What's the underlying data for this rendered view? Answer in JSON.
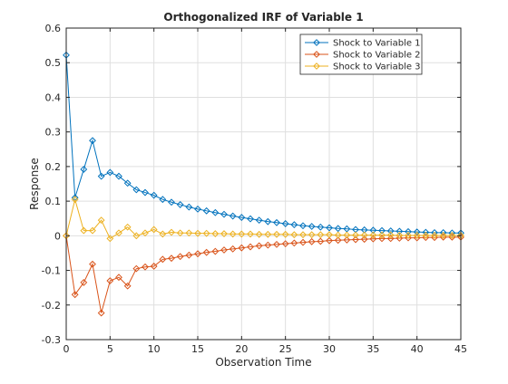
{
  "chart_data": {
    "type": "line",
    "title": "Orthogonalized IRF of Variable 1",
    "xlabel": "Observation Time",
    "ylabel": "Response",
    "xlim": [
      0,
      45
    ],
    "ylim": [
      -0.3,
      0.6
    ],
    "xticks": [
      0,
      5,
      10,
      15,
      20,
      25,
      30,
      35,
      40,
      45
    ],
    "yticks": [
      -0.3,
      -0.2,
      -0.1,
      0,
      0.1,
      0.2,
      0.3,
      0.4,
      0.5,
      0.6
    ],
    "xtick_labels": [
      "0",
      "5",
      "10",
      "15",
      "20",
      "25",
      "30",
      "35",
      "40",
      "45"
    ],
    "ytick_labels": [
      "-0.3",
      "-0.2",
      "-0.1",
      "0",
      "0.1",
      "0.2",
      "0.3",
      "0.4",
      "0.5",
      "0.6"
    ],
    "grid": true,
    "legend_position": "top-right",
    "marker": "diamond",
    "x": [
      0,
      1,
      2,
      3,
      4,
      5,
      6,
      7,
      8,
      9,
      10,
      11,
      12,
      13,
      14,
      15,
      16,
      17,
      18,
      19,
      20,
      21,
      22,
      23,
      24,
      25,
      26,
      27,
      28,
      29,
      30,
      31,
      32,
      33,
      34,
      35,
      36,
      37,
      38,
      39,
      40,
      41,
      42,
      43,
      44,
      45
    ],
    "series": [
      {
        "name": "Shock to Variable 1",
        "color": "#0072BD",
        "values": [
          0.522,
          0.11,
          0.192,
          0.275,
          0.172,
          0.183,
          0.172,
          0.152,
          0.133,
          0.125,
          0.117,
          0.105,
          0.097,
          0.09,
          0.083,
          0.077,
          0.072,
          0.067,
          0.062,
          0.057,
          0.053,
          0.049,
          0.045,
          0.041,
          0.038,
          0.035,
          0.032,
          0.029,
          0.027,
          0.025,
          0.023,
          0.021,
          0.02,
          0.018,
          0.017,
          0.016,
          0.015,
          0.014,
          0.013,
          0.012,
          0.011,
          0.01,
          0.009,
          0.009,
          0.008,
          0.008
        ]
      },
      {
        "name": "Shock to Variable 2",
        "color": "#D95319",
        "values": [
          0.0,
          -0.17,
          -0.135,
          -0.082,
          -0.223,
          -0.13,
          -0.12,
          -0.145,
          -0.095,
          -0.09,
          -0.088,
          -0.068,
          -0.065,
          -0.06,
          -0.056,
          -0.052,
          -0.048,
          -0.045,
          -0.041,
          -0.038,
          -0.035,
          -0.032,
          -0.029,
          -0.027,
          -0.025,
          -0.023,
          -0.021,
          -0.019,
          -0.017,
          -0.016,
          -0.014,
          -0.013,
          -0.012,
          -0.011,
          -0.01,
          -0.009,
          -0.008,
          -0.008,
          -0.007,
          -0.006,
          -0.006,
          -0.005,
          -0.005,
          -0.004,
          -0.004,
          -0.004
        ]
      },
      {
        "name": "Shock to Variable 3",
        "color": "#EDB120",
        "values": [
          0.0,
          0.105,
          0.015,
          0.015,
          0.045,
          -0.008,
          0.008,
          0.025,
          0.0,
          0.008,
          0.018,
          0.005,
          0.01,
          0.008,
          0.008,
          0.007,
          0.007,
          0.006,
          0.006,
          0.005,
          0.005,
          0.005,
          0.004,
          0.004,
          0.004,
          0.004,
          0.003,
          0.003,
          0.003,
          0.003,
          0.003,
          0.002,
          0.002,
          0.002,
          0.002,
          0.002,
          0.002,
          0.002,
          0.001,
          0.001,
          0.001,
          0.001,
          0.001,
          0.001,
          0.001,
          0.001
        ]
      }
    ]
  }
}
